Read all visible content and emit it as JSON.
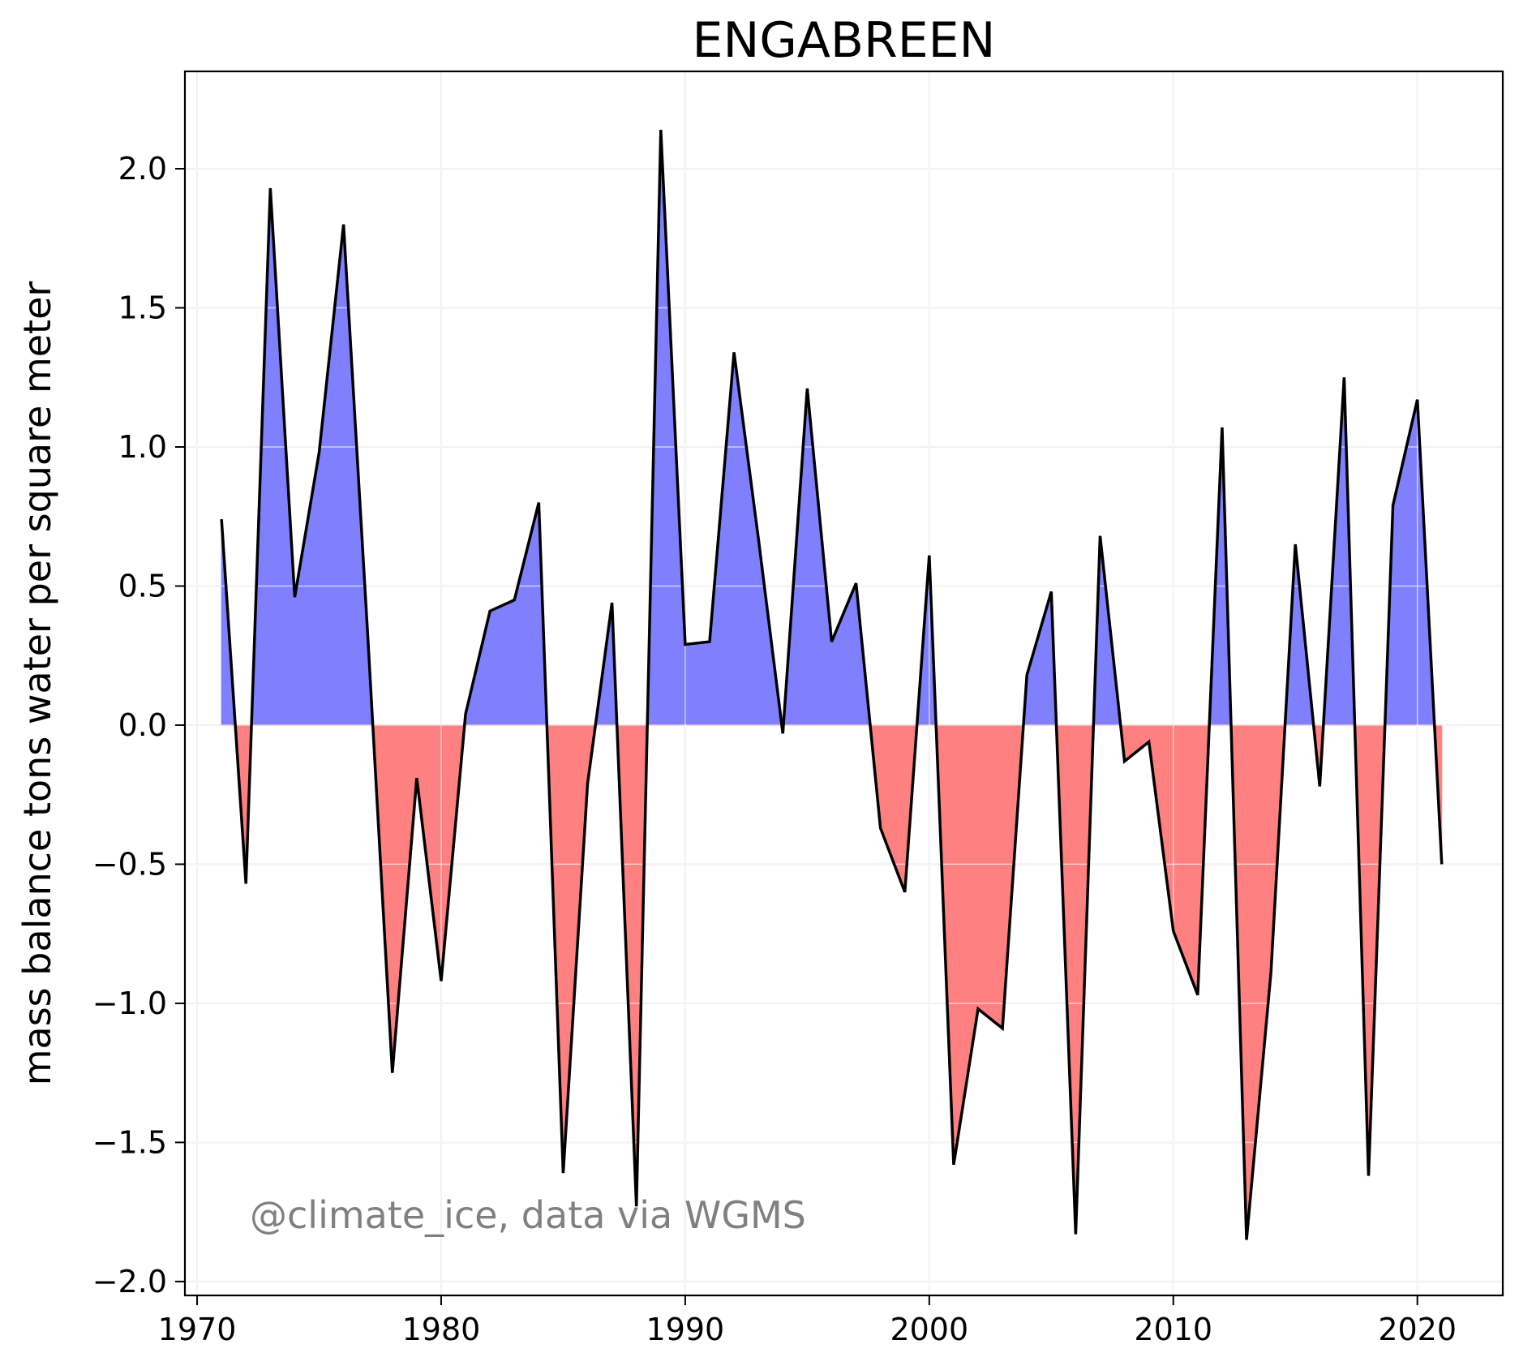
{
  "chart_data": {
    "type": "area",
    "title": "ENGABREEN",
    "xlabel": "",
    "ylabel": "mass balance tons water per square meter",
    "annotation": "@climate_ice, data via WGMS",
    "xlim": [
      1969.5,
      2023.5
    ],
    "ylim": [
      -2.05,
      2.35
    ],
    "x_ticks": [
      1970,
      1980,
      1990,
      2000,
      2010,
      2020
    ],
    "y_ticks": [
      -2.0,
      -1.5,
      -1.0,
      -0.5,
      0.0,
      0.5,
      1.0,
      1.5,
      2.0
    ],
    "x_tick_labels": [
      "1970",
      "1980",
      "1990",
      "2000",
      "2010",
      "2020"
    ],
    "y_tick_labels": [
      "−2.0",
      "−1.5",
      "−1.0",
      "−0.5",
      "0.0",
      "0.5",
      "1.0",
      "1.5",
      "2.0"
    ],
    "grid": true,
    "colors": {
      "positive": "#8080ff",
      "negative": "#ff8080",
      "line": "#000000",
      "grid": "#e6e6e6",
      "annotation": "#808080"
    },
    "x": [
      1971,
      1972,
      1973,
      1974,
      1975,
      1976,
      1977,
      1978,
      1979,
      1980,
      1981,
      1982,
      1983,
      1984,
      1985,
      1986,
      1987,
      1988,
      1989,
      1990,
      1991,
      1992,
      1993,
      1994,
      1995,
      1996,
      1997,
      1998,
      1999,
      2000,
      2001,
      2002,
      2003,
      2004,
      2005,
      2006,
      2007,
      2008,
      2009,
      2010,
      2011,
      2012,
      2013,
      2014,
      2015,
      2016,
      2017,
      2018,
      2019,
      2020,
      2021
    ],
    "values": [
      0.74,
      -0.57,
      1.93,
      0.46,
      0.98,
      1.8,
      0.31,
      -1.25,
      -0.19,
      -0.92,
      0.04,
      0.41,
      0.45,
      0.8,
      -1.61,
      -0.21,
      0.44,
      -1.73,
      2.14,
      0.29,
      0.3,
      1.34,
      0.67,
      -0.03,
      1.21,
      0.3,
      0.51,
      -0.37,
      -0.6,
      0.61,
      -1.58,
      -1.02,
      -1.09,
      0.18,
      0.48,
      -1.83,
      0.68,
      -0.13,
      -0.06,
      -0.74,
      -0.97,
      1.07,
      -1.85,
      -0.89,
      0.65,
      -0.22,
      1.25,
      -1.62,
      0.79,
      1.17,
      -0.5
    ]
  }
}
